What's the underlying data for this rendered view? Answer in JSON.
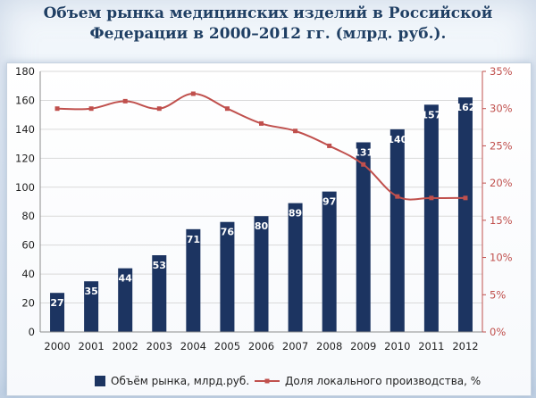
{
  "title_line1": "Объем рынка медицинских изделий в Российской",
  "title_line2": "Федерации в 2000–2012 гг. (млрд. руб.).",
  "colors": {
    "bar": "#1c3461",
    "line": "#c0504d",
    "left_axis_text": "#1f1f1f",
    "right_axis_text": "#c0504d",
    "bar_label": "#ffffff"
  },
  "chart_data": {
    "type": "bar",
    "categories": [
      "2000",
      "2001",
      "2002",
      "2003",
      "2004",
      "2005",
      "2006",
      "2007",
      "2008",
      "2009",
      "2010",
      "2011",
      "2012"
    ],
    "series": [
      {
        "name": "Объём рынка, млрд.руб.",
        "type": "bar",
        "axis": "left",
        "values": [
          27,
          35,
          44,
          53,
          71,
          76,
          80,
          89,
          97,
          131,
          140,
          157,
          162
        ],
        "labels": [
          "27",
          "35",
          "44",
          "53",
          "71",
          "76",
          "80",
          "89",
          "97",
          "131",
          "140",
          "157",
          "162"
        ]
      },
      {
        "name": "Доля локального производства, %",
        "type": "line",
        "axis": "right",
        "values": [
          30,
          30,
          31,
          30,
          32,
          30,
          28,
          27,
          25,
          22.5,
          18.2,
          18,
          18
        ]
      }
    ],
    "y_left": {
      "min": 0,
      "max": 180,
      "ticks": [
        "0",
        "20",
        "40",
        "60",
        "80",
        "100",
        "120",
        "140",
        "160",
        "180"
      ]
    },
    "y_right": {
      "min": 0,
      "max": 35,
      "ticks": [
        "0%",
        "5%",
        "10%",
        "15%",
        "20%",
        "25%",
        "30%",
        "35%"
      ]
    },
    "grid": true,
    "legend_position": "bottom"
  }
}
